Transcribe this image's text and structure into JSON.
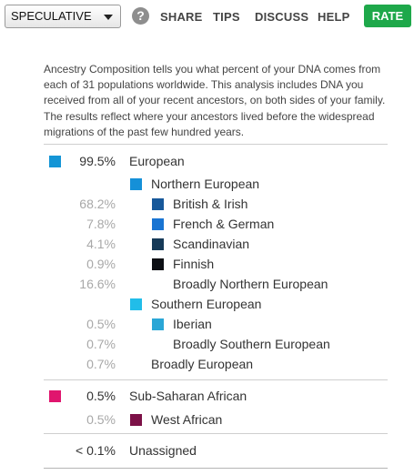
{
  "toolbar": {
    "select_value": "SPECULATIVE",
    "help_icon": "?",
    "nav": [
      "SHARE",
      "TIPS",
      "DISCUSS",
      "HELP"
    ],
    "rate_label": "RATE"
  },
  "description": "Ancestry Composition tells you what percent of your DNA comes from each of 31 populations worldwide. This analysis includes DNA you received from all of your recent ancestors, on both sides of your family. The results reflect where your ancestors lived before the widespread migrations of the past few hundred years.",
  "composition": {
    "european": {
      "pct": "99.5%",
      "label": "European",
      "color": "#1495d6",
      "northern": {
        "label": "Northern European",
        "color": "#1590d8",
        "items": [
          {
            "pct": "68.2%",
            "label": "British & Irish",
            "color": "#17589a"
          },
          {
            "pct": "7.8%",
            "label": "French & German",
            "color": "#1974d2"
          },
          {
            "pct": "4.1%",
            "label": "Scandinavian",
            "color": "#163a58"
          },
          {
            "pct": "0.9%",
            "label": "Finnish",
            "color": "#0c0f14"
          },
          {
            "pct": "16.6%",
            "label": "Broadly Northern European",
            "color": ""
          }
        ]
      },
      "southern": {
        "label": "Southern European",
        "color": "#21bde9",
        "items": [
          {
            "pct": "0.5%",
            "label": "Iberian",
            "color": "#2aa6d6"
          },
          {
            "pct": "0.7%",
            "label": "Broadly Southern European",
            "color": ""
          }
        ]
      },
      "broad": {
        "pct": "0.7%",
        "label": "Broadly European"
      }
    },
    "subsaharan": {
      "pct": "0.5%",
      "label": "Sub-Saharan African",
      "color": "#e0156e",
      "items": [
        {
          "pct": "0.5%",
          "label": "West African",
          "color": "#7c1147"
        }
      ]
    },
    "unassigned": {
      "pct": "< 0.1%",
      "label": "Unassigned"
    }
  }
}
